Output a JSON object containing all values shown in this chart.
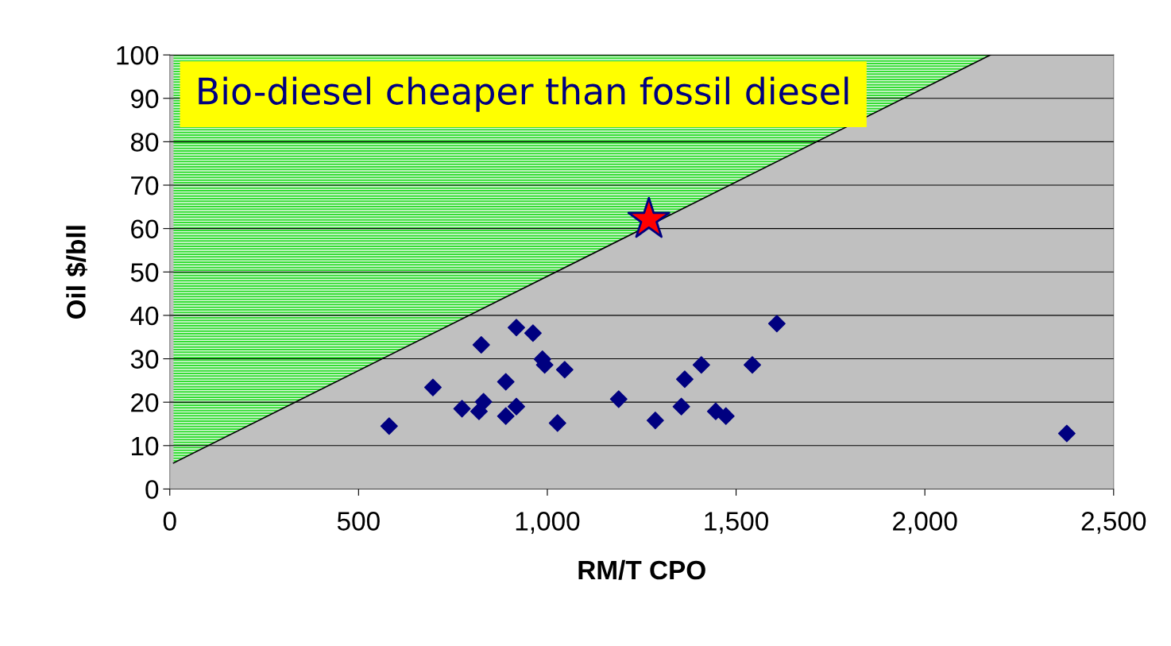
{
  "chart_data": {
    "type": "scatter",
    "xlabel": "RM/T CPO",
    "ylabel": "Oil $/bll",
    "xlim": [
      0,
      2500
    ],
    "xticks": [
      0,
      500,
      {
        "value": 1000,
        "label": "1,000"
      },
      {
        "value": 1500,
        "label": "1,500"
      },
      {
        "value": 2000,
        "label": "2,000"
      },
      {
        "value": 2500,
        "label": "2,500"
      }
    ],
    "ylim": [
      0,
      100
    ],
    "yticks": [
      0,
      10,
      20,
      30,
      40,
      50,
      60,
      70,
      80,
      90,
      100
    ],
    "grid": "y",
    "legend": false,
    "annotations": [
      "Bio-diesel cheaper than fossil diesel"
    ],
    "series": [
      {
        "type": "line",
        "color": "#000000",
        "x": [
          10,
          2174
        ],
        "values": [
          6,
          100
        ],
        "lower": [
          6,
          100
        ],
        "upper": [
          100,
          100
        ]
      },
      {
        "marker": "diamond",
        "color": "#000080",
        "x": [
          581,
          697,
          774,
          819,
          825,
          831,
          890,
          890,
          918,
          918,
          962,
          987,
          993,
          1027,
          1046,
          1189,
          1286,
          1355,
          1364,
          1408,
          1446,
          1473,
          1543,
          1608,
          2376
        ],
        "values": [
          14.5,
          23.4,
          18.5,
          17.9,
          33.2,
          20.1,
          24.7,
          16.8,
          37.2,
          19.0,
          35.9,
          29.9,
          28.6,
          15.2,
          27.5,
          20.7,
          15.8,
          19.0,
          25.3,
          28.6,
          17.9,
          16.8,
          28.6,
          38.1,
          12.8
        ]
      },
      {
        "marker": "star",
        "color": "#ff0000",
        "x": [
          1269
        ],
        "values": [
          62.1
        ]
      }
    ]
  }
}
